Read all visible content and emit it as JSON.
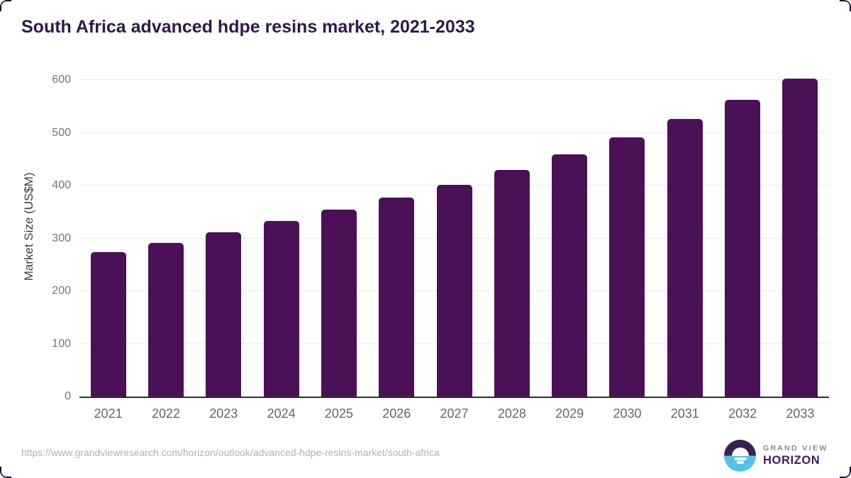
{
  "title": "South Africa advanced hdpe resins market, 2021-2033",
  "chart_data": {
    "type": "bar",
    "categories": [
      "2021",
      "2022",
      "2023",
      "2024",
      "2025",
      "2026",
      "2027",
      "2028",
      "2029",
      "2030",
      "2031",
      "2032",
      "2033"
    ],
    "values": [
      274,
      292,
      311,
      333,
      355,
      377,
      402,
      430,
      460,
      491,
      526,
      563,
      603
    ],
    "title": "South Africa advanced hdpe resins market, 2021-2033",
    "xlabel": "",
    "ylabel": "Market Size (US$M)",
    "ylim": [
      0,
      600
    ],
    "yticks": [
      0,
      100,
      200,
      300,
      400,
      500,
      600
    ],
    "grid": "horizontal",
    "legend": "none",
    "bar_color": "#4b1157"
  },
  "footer": {
    "url": "https://www.grandviewresearch.com/horizon/outlook/advanced-hdpe-resins-market/south-africa",
    "brand_top": "GRAND VIEW",
    "brand_bottom": "HORIZON"
  },
  "colors": {
    "bar": "#4b1157",
    "title_text": "#2e1a47",
    "axis_line": "#2d2d2d",
    "gridline": "#ececec",
    "y_tick_label": "#757575",
    "x_tick_label": "#666666",
    "url_text": "#b1b1b1",
    "logo_dark": "#3a2152",
    "logo_blue": "#57c2e9",
    "logo_wordmark": "#3e1c5c"
  }
}
